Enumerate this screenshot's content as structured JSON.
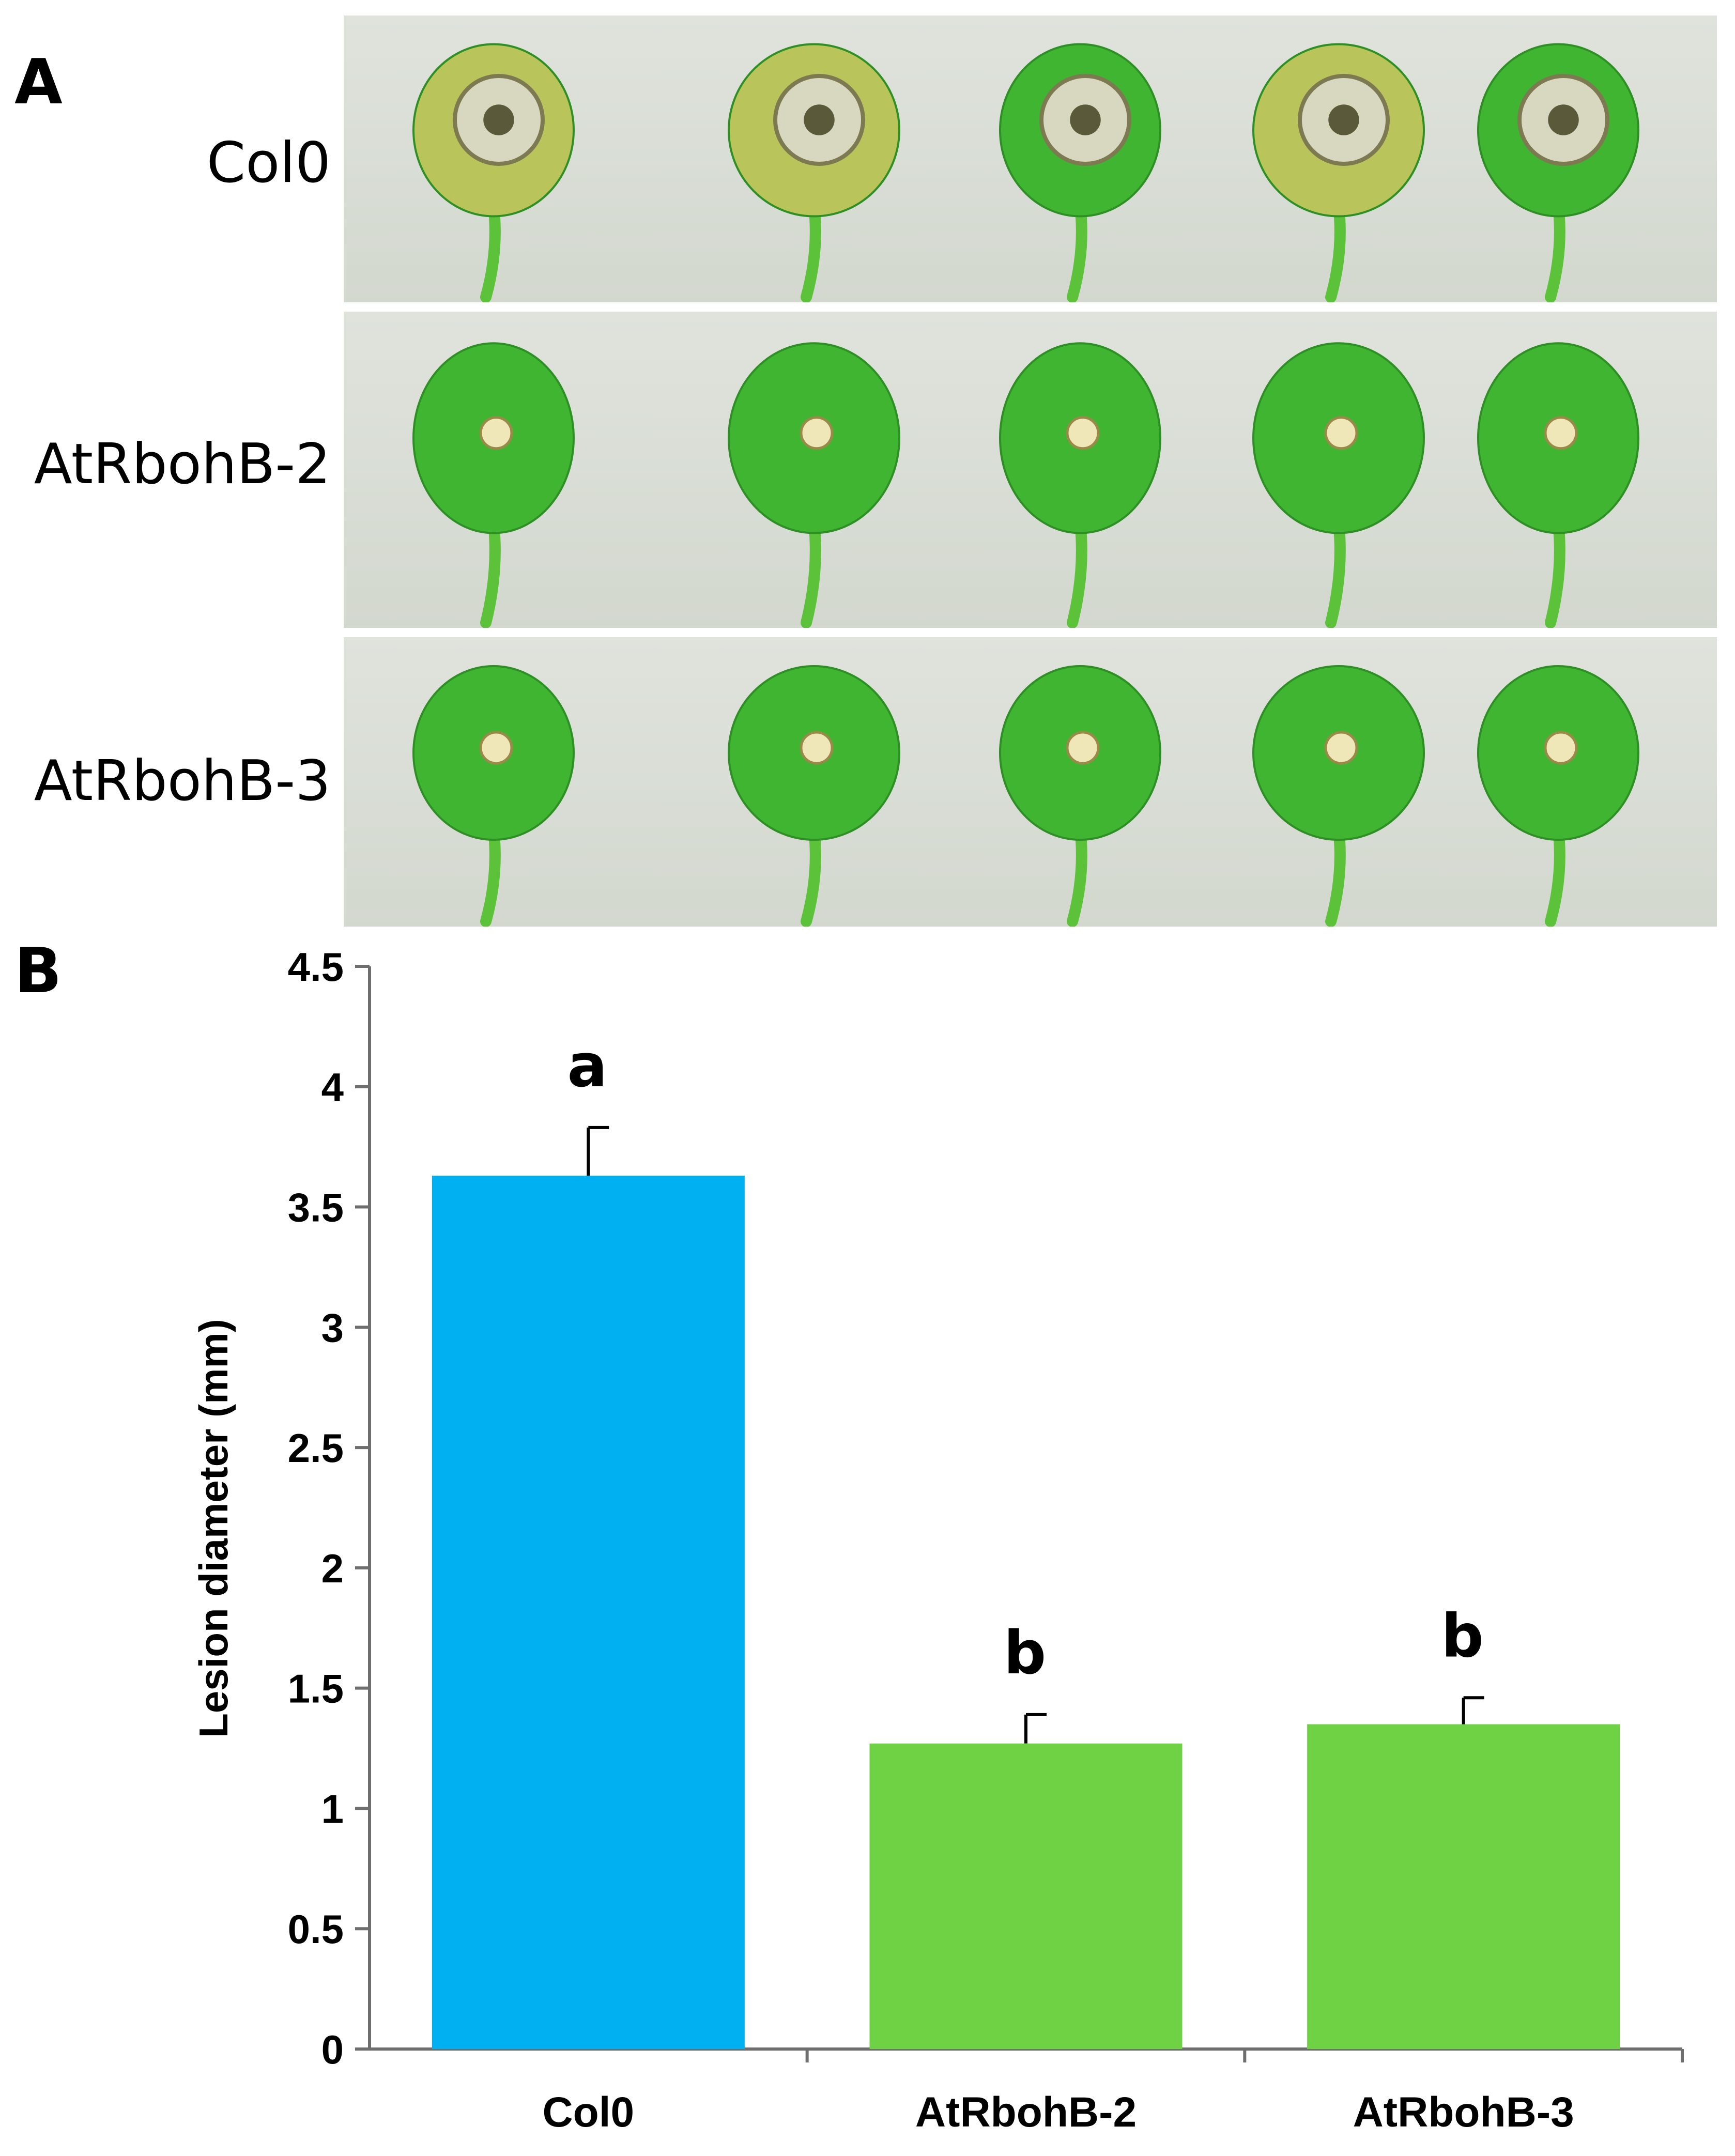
{
  "panel_a": {
    "letter": "A",
    "rows": [
      {
        "label": "Col0",
        "lesion": "large"
      },
      {
        "label": "AtRbohB-2",
        "lesion": "small"
      },
      {
        "label": "AtRbohB-3",
        "lesion": "small"
      }
    ]
  },
  "panel_b": {
    "letter": "B"
  },
  "colors": {
    "col0": "#00b0f0",
    "mutant": "#6fd244",
    "leaf": "#3fb531",
    "leaf_yellow": "#b9c45a"
  },
  "chart_data": {
    "type": "bar",
    "categories": [
      "Col0",
      "AtRbohB-2",
      "AtRbohB-3"
    ],
    "values": [
      3.63,
      1.27,
      1.35
    ],
    "errors": [
      0.2,
      0.12,
      0.11
    ],
    "significance": [
      "a",
      "b",
      "b"
    ],
    "title": "",
    "xlabel": "",
    "ylabel": "Lesion diameter (mm)",
    "ylim": [
      0,
      4.5
    ],
    "yticks": [
      "0",
      "0.5",
      "1",
      "1.5",
      "2",
      "2.5",
      "3",
      "3.5",
      "4",
      "4.5"
    ],
    "grid": false,
    "legend": "none"
  }
}
